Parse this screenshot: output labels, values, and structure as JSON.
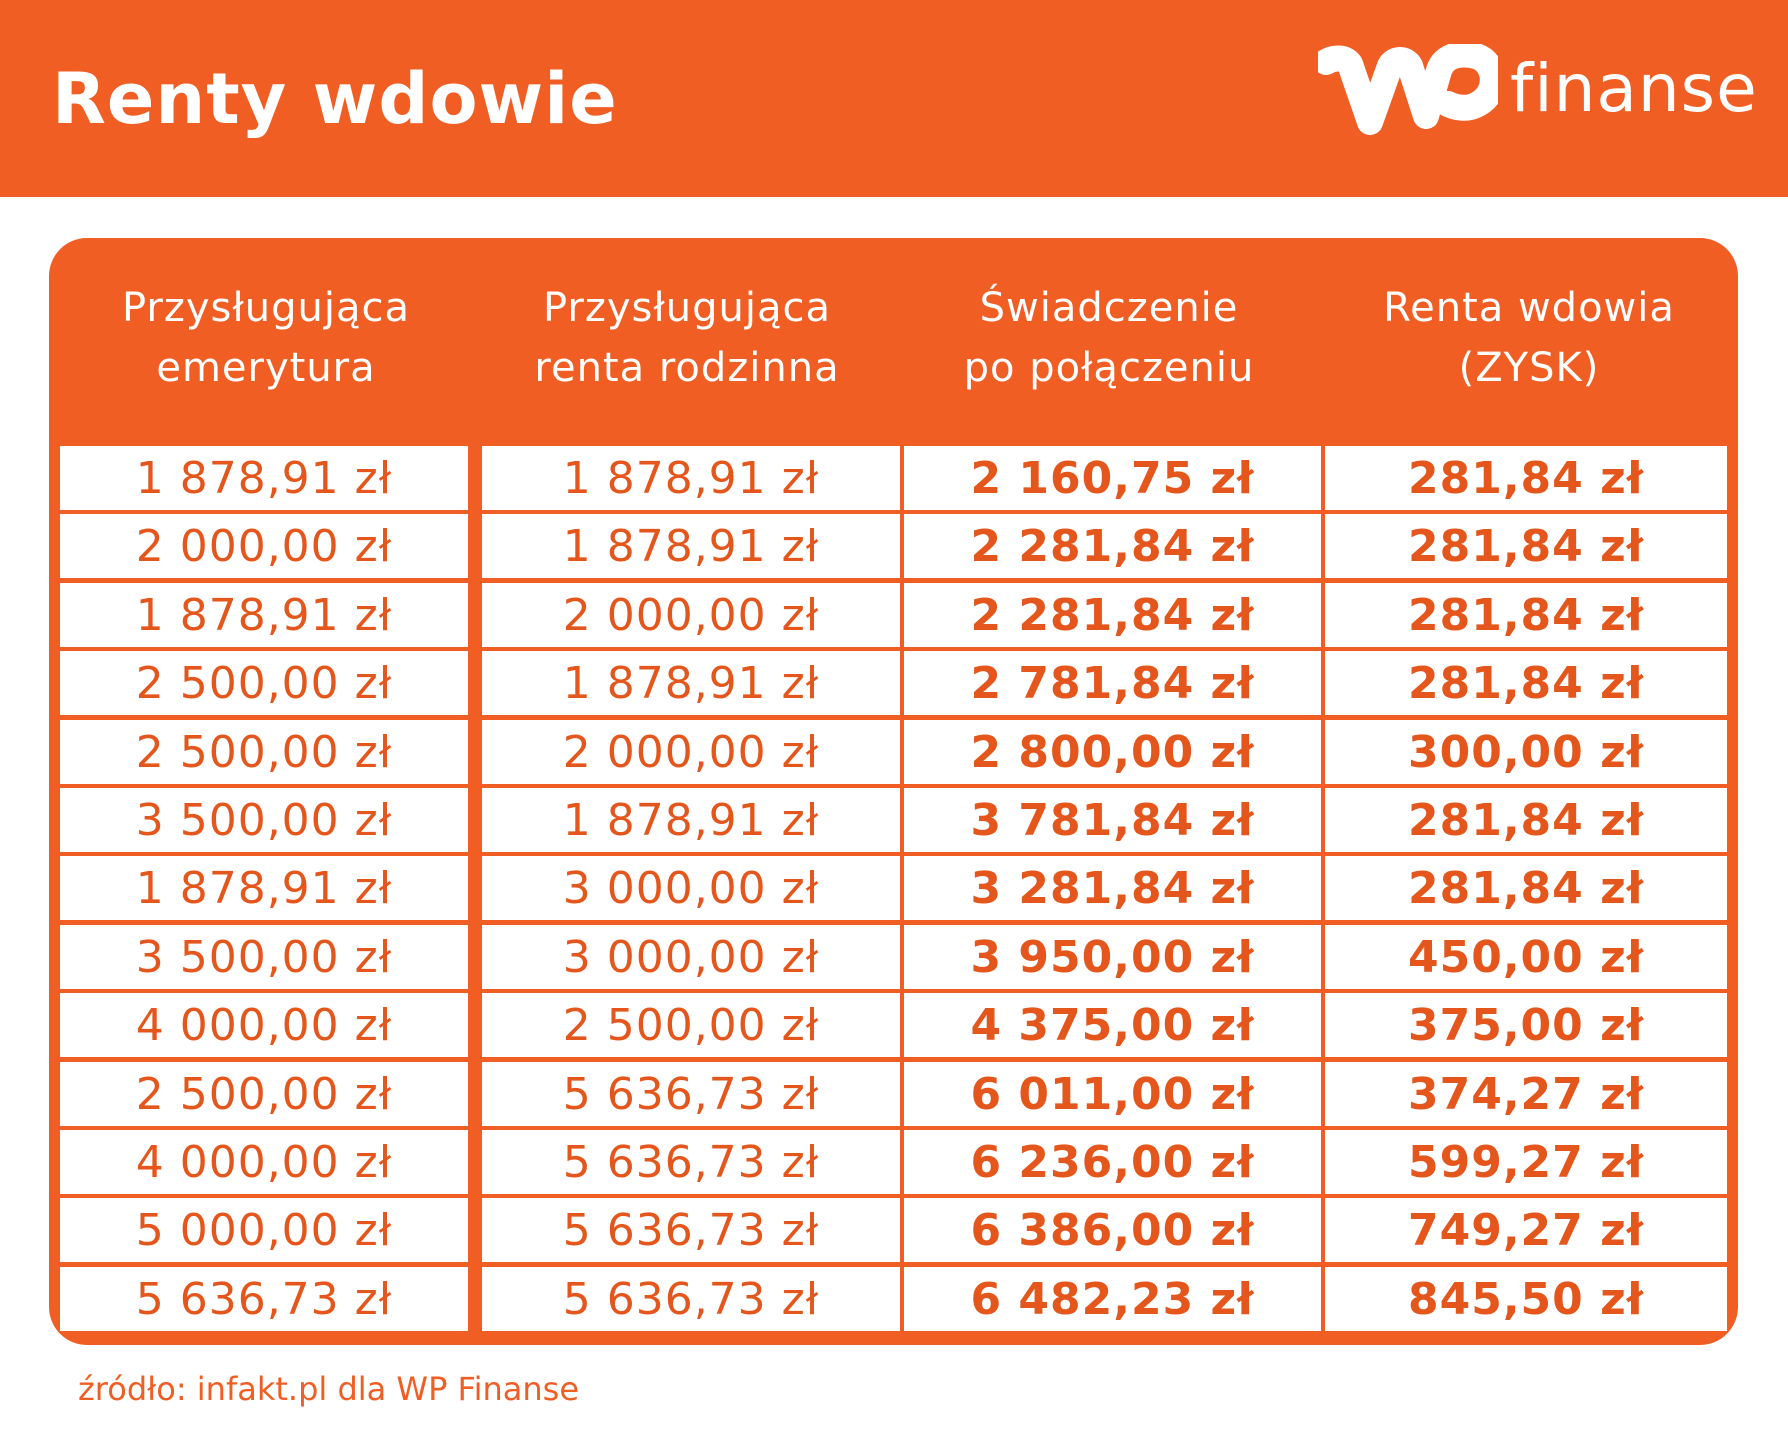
{
  "header": {
    "title": "Renty wdowie",
    "logo_text": "finanse",
    "logo_mark": "WP"
  },
  "table": {
    "columns": [
      [
        "Przysługująca",
        "emerytura"
      ],
      [
        "Przysługująca",
        "renta rodzinna"
      ],
      [
        "Świadczenie",
        "po połączeniu"
      ],
      [
        "Renta wdowia",
        "(ZYSK)"
      ]
    ],
    "rows": [
      [
        "1 878,91 zł",
        "1 878,91 zł",
        "2 160,75 zł",
        "281,84 zł"
      ],
      [
        "2 000,00 zł",
        "1 878,91 zł",
        "2 281,84 zł",
        "281,84 zł"
      ],
      [
        "1 878,91 zł",
        "2 000,00 zł",
        "2 281,84 zł",
        "281,84 zł"
      ],
      [
        "2 500,00 zł",
        "1 878,91 zł",
        "2 781,84 zł",
        "281,84 zł"
      ],
      [
        "2 500,00 zł",
        "2 000,00 zł",
        "2 800,00 zł",
        "300,00 zł"
      ],
      [
        "3 500,00 zł",
        "1 878,91 zł",
        "3 781,84 zł",
        "281,84 zł"
      ],
      [
        "1 878,91 zł",
        "3 000,00 zł",
        "3 281,84 zł",
        "281,84 zł"
      ],
      [
        "3 500,00 zł",
        "3 000,00 zł",
        "3 950,00 zł",
        "450,00 zł"
      ],
      [
        "4 000,00 zł",
        "2 500,00 zł",
        "4 375,00 zł",
        "375,00 zł"
      ],
      [
        "2 500,00 zł",
        "5 636,73 zł",
        "6 011,00 zł",
        "374,27 zł"
      ],
      [
        "4 000,00 zł",
        "5 636,73 zł",
        "6 236,00 zł",
        "599,27 zł"
      ],
      [
        "5 000,00 zł",
        "5 636,73 zł",
        "6 386,00 zł",
        "749,27 zł"
      ],
      [
        "5 636,73 zł",
        "5 636,73 zł",
        "6 482,23 zł",
        "845,50 zł"
      ]
    ]
  },
  "source": "źródło: infakt.pl dla WP Finanse",
  "colors": {
    "brand_orange": "#f15e24",
    "text_orange": "#e4561b",
    "white": "#ffffff"
  }
}
